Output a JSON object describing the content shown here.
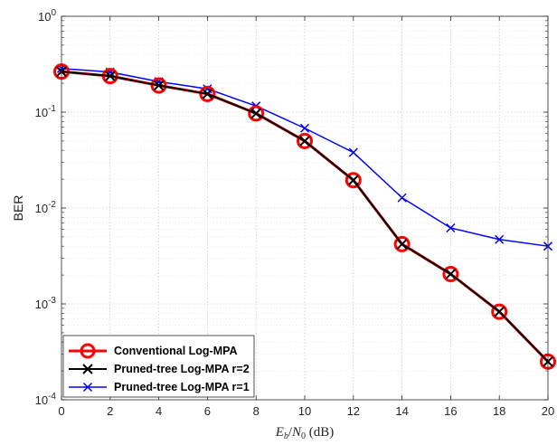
{
  "chart_data": {
    "type": "line",
    "xlabel_math": {
      "E": "E",
      "b": "b",
      "slash": "/",
      "N": "N",
      "zero": "0",
      "unit": " (dB)"
    },
    "ylabel": "BER",
    "x": [
      0,
      2,
      4,
      6,
      8,
      10,
      12,
      14,
      16,
      18,
      20
    ],
    "xlim": [
      0,
      20
    ],
    "ylim": [
      0.0001,
      1
    ],
    "yscale": "log",
    "xticks": [
      "0",
      "2",
      "4",
      "6",
      "8",
      "10",
      "12",
      "14",
      "16",
      "18",
      "20"
    ],
    "ytick_base": "10",
    "ytick_exps": [
      "0",
      "-1",
      "-2",
      "-3",
      "-4"
    ],
    "grid": true,
    "legend_position": "bottom-left",
    "series": [
      {
        "name": "Conventional Log-MPA",
        "color": "#ff0000",
        "marker": "circle",
        "values": [
          0.265,
          0.238,
          0.19,
          0.155,
          0.097,
          0.05,
          0.0195,
          0.0042,
          0.00205,
          0.00083,
          0.00025
        ]
      },
      {
        "name": "Pruned-tree Log-MPA r=2",
        "color": "#000000",
        "marker": "x",
        "values": [
          0.265,
          0.238,
          0.19,
          0.155,
          0.097,
          0.05,
          0.0195,
          0.0042,
          0.00205,
          0.00083,
          0.00025
        ]
      },
      {
        "name": "Pruned-tree Log-MPA r=1",
        "color": "#0000ff",
        "marker": "x",
        "values": [
          0.285,
          0.262,
          0.208,
          0.175,
          0.116,
          0.068,
          0.038,
          0.0128,
          0.0062,
          0.0047,
          0.004
        ]
      }
    ]
  }
}
